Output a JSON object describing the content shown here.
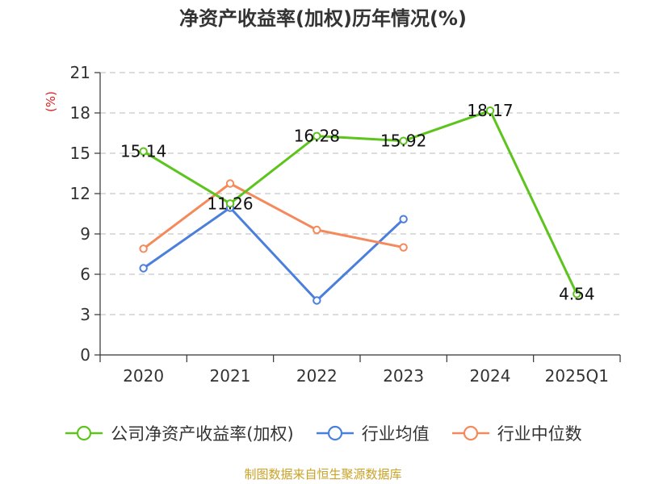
{
  "title": "净资产收益率(加权)历年情况(%)",
  "y_unit": "(%)",
  "source": "制图数据来自恒生聚源数据库",
  "chart_data": {
    "type": "line",
    "title": "净资产收益率(加权)历年情况(%)",
    "ylabel": "(%)",
    "xlabel": "",
    "categories": [
      "2020",
      "2021",
      "2022",
      "2023",
      "2024",
      "2025Q1"
    ],
    "ylim": [
      0,
      21
    ],
    "yticks": [
      0,
      3,
      6,
      9,
      12,
      15,
      18,
      21
    ],
    "grid": true,
    "legend_position": "bottom",
    "series": [
      {
        "name": "公司净资产收益率(加权)",
        "color": "#5cc41c",
        "values": [
          15.14,
          11.26,
          16.28,
          15.92,
          18.17,
          4.54
        ],
        "labels": [
          "15.14",
          "11.26",
          "16.28",
          "15.92",
          "18.17",
          "4.54"
        ]
      },
      {
        "name": "行业均值",
        "color": "#4a7fdc",
        "values": [
          6.45,
          10.95,
          4.05,
          10.1,
          null,
          null
        ]
      },
      {
        "name": "行业中位数",
        "color": "#f48a5c",
        "values": [
          7.9,
          12.75,
          9.3,
          8.0,
          null,
          null
        ]
      }
    ]
  }
}
